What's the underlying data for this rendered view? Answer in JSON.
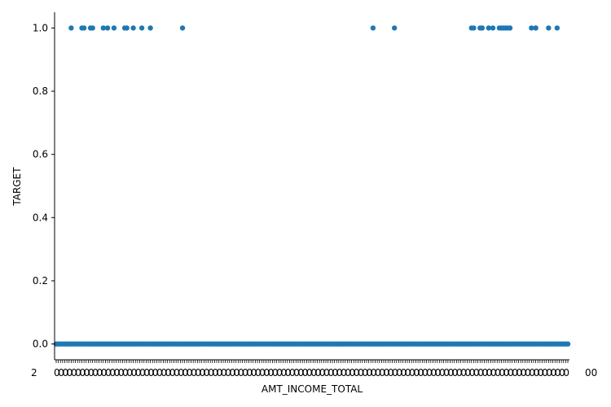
{
  "chart_data": {
    "type": "scatter",
    "title": "",
    "xlabel": "AMT_INCOME_TOTAL",
    "ylabel": "TARGET",
    "ylim": [
      -0.05,
      1.05
    ],
    "yticks": [
      0.0,
      0.2,
      0.4,
      0.6,
      0.8,
      1.0
    ],
    "ytick_labels": [
      "0.0",
      "0.2",
      "0.4",
      "0.6",
      "0.8",
      "1.0"
    ],
    "x_is_categorical": true,
    "x_category_count": 240,
    "xtick_label_left_fragment": "2",
    "xtick_label_right_fragment": "00",
    "grid": false,
    "legend": "none",
    "series": [
      {
        "points_y0_category_range": [
          0,
          239
        ],
        "points_y1_category_indices": [
          7,
          12,
          13,
          16,
          17,
          22,
          24,
          27,
          32,
          33,
          36,
          40,
          44,
          59,
          148,
          158,
          194,
          195,
          198,
          199,
          202,
          204,
          207,
          208,
          209,
          210,
          211,
          212,
          222,
          224,
          224,
          230,
          234
        ],
        "color": "#1f77b4"
      }
    ]
  }
}
